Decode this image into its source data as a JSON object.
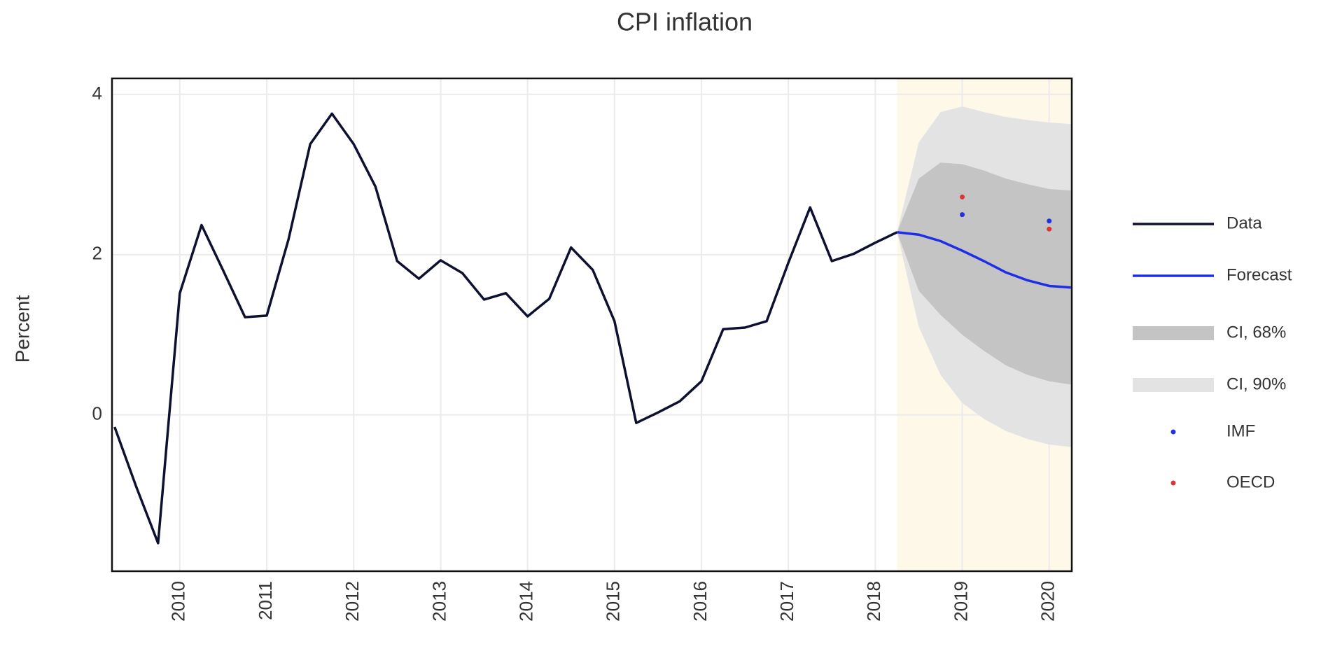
{
  "chart_data": {
    "type": "line",
    "title": "CPI inflation",
    "y_label": "Percent",
    "xlim": [
      2009.22,
      2020.26
    ],
    "ylim": [
      -1.95,
      4.2
    ],
    "xticks": [
      2010,
      2011,
      2012,
      2013,
      2014,
      2015,
      2016,
      2017,
      2018,
      2019,
      2020
    ],
    "yticks": [
      0,
      2,
      4
    ],
    "grid": true,
    "legend": "right",
    "forecast_shade": "#fdf8e8",
    "bands": [
      {
        "name": "CI, 90%",
        "color": "#e3e3e3",
        "x": [
          2018.25,
          2018.5,
          2018.75,
          2019.0,
          2019.25,
          2019.5,
          2019.75,
          2020.0,
          2020.25
        ],
        "upper": [
          2.28,
          3.4,
          3.78,
          3.85,
          3.78,
          3.72,
          3.68,
          3.65,
          3.63
        ],
        "lower": [
          2.28,
          1.1,
          0.5,
          0.15,
          -0.05,
          -0.2,
          -0.3,
          -0.37,
          -0.4
        ]
      },
      {
        "name": "CI, 68%",
        "color": "#c4c4c4",
        "x": [
          2018.25,
          2018.5,
          2018.75,
          2019.0,
          2019.25,
          2019.5,
          2019.75,
          2020.0,
          2020.25
        ],
        "upper": [
          2.28,
          2.95,
          3.15,
          3.13,
          3.05,
          2.95,
          2.88,
          2.82,
          2.8
        ],
        "lower": [
          2.28,
          1.55,
          1.25,
          1.0,
          0.8,
          0.62,
          0.5,
          0.42,
          0.38
        ]
      }
    ],
    "series": [
      {
        "name": "Data",
        "color": "#0d1030",
        "x": [
          2009.25,
          2009.5,
          2009.75,
          2010.0,
          2010.25,
          2010.5,
          2010.75,
          2011.0,
          2011.25,
          2011.5,
          2011.75,
          2012.0,
          2012.25,
          2012.5,
          2012.75,
          2013.0,
          2013.25,
          2013.5,
          2013.75,
          2014.0,
          2014.25,
          2014.5,
          2014.75,
          2015.0,
          2015.25,
          2015.5,
          2015.75,
          2016.0,
          2016.25,
          2016.5,
          2016.75,
          2017.0,
          2017.25,
          2017.5,
          2017.75,
          2018.0,
          2018.25
        ],
        "values": [
          -0.15,
          -0.9,
          -1.6,
          1.52,
          2.37,
          1.8,
          1.22,
          1.24,
          2.19,
          3.38,
          3.76,
          3.38,
          2.85,
          1.92,
          1.7,
          1.93,
          1.77,
          1.44,
          1.52,
          1.23,
          1.45,
          2.09,
          1.81,
          1.17,
          -0.1,
          0.03,
          0.17,
          0.42,
          1.07,
          1.09,
          1.17,
          1.9,
          2.59,
          1.92,
          2.01,
          2.15,
          2.28
        ]
      },
      {
        "name": "Forecast",
        "color": "#1f2ee6",
        "x": [
          2018.25,
          2018.5,
          2018.75,
          2019.0,
          2019.25,
          2019.5,
          2019.75,
          2020.0,
          2020.25
        ],
        "values": [
          2.28,
          2.25,
          2.17,
          2.05,
          1.92,
          1.78,
          1.68,
          1.61,
          1.59
        ]
      }
    ],
    "points": [
      {
        "name": "IMF",
        "color": "#2233dd",
        "x": [
          2019,
          2020
        ],
        "values": [
          2.5,
          2.42
        ]
      },
      {
        "name": "OECD",
        "color": "#dd3333",
        "x": [
          2019,
          2020
        ],
        "values": [
          2.72,
          2.32
        ]
      }
    ]
  }
}
